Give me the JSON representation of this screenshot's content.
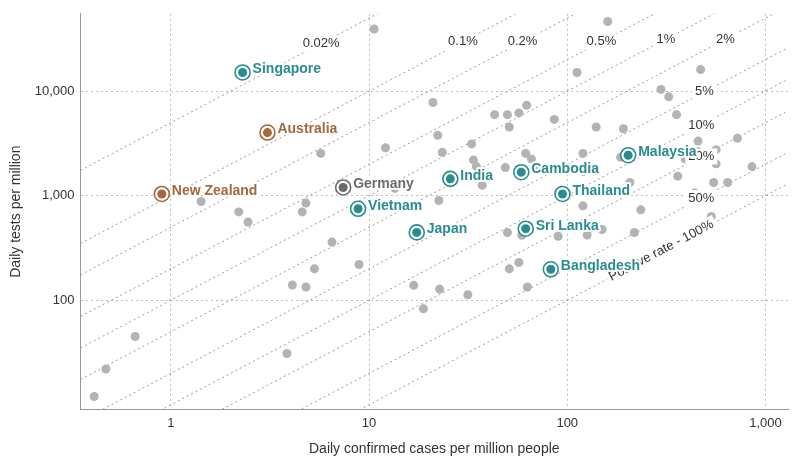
{
  "chart_data": {
    "type": "scatter",
    "x_label": "Daily confirmed cases per million people",
    "y_label": "Daily tests per million",
    "log": true,
    "grid": true,
    "xlim": [
      0.35,
      1300
    ],
    "ylim": [
      9,
      55000
    ],
    "xticks": [
      1,
      10,
      100,
      {
        "value": 1000,
        "label": "1,000"
      }
    ],
    "yticks": [
      100,
      {
        "value": 1000,
        "label": "1,000"
      },
      {
        "value": 10000,
        "label": "10,000"
      }
    ],
    "series": [
      {
        "color": "#b3b3b3",
        "marker": "circle",
        "x": [
          0.41,
          0.47,
          0.66,
          1.42,
          2.2,
          2.45,
          2.5,
          3.85,
          4.1,
          4.8,
          4.6,
          4.8,
          5.3,
          5.7,
          6.5,
          8.9,
          10.6,
          12.1,
          16.8,
          13.5,
          18.8,
          21,
          22.2,
          22.5,
          22.7,
          23.4,
          31.5,
          32.9,
          33.6,
          34.8,
          34,
          37.2,
          43,
          49.9,
          51,
          48.7,
          49.9,
          51,
          57,
          57,
          59,
          62.4,
          61.7,
          62.9,
          66,
          69,
          86,
          90,
          112,
          120,
          121,
          120,
          129,
          126,
          150,
          140,
          153,
          160,
          192,
          186,
          207,
          235,
          218,
          297,
          325,
          356,
          361,
          394,
          440,
          471,
          457,
          457,
          564,
          548,
          533,
          722,
          855,
          645,
          564
        ],
        "y": [
          12,
          22,
          45,
          880,
          700,
          560,
          1110,
          31,
          140,
          134,
          700,
          850,
          200,
          2540,
          360,
          220,
          39400,
          2880,
          139,
          1180,
          83,
          7800,
          3780,
          900,
          128,
          2600,
          113,
          3130,
          2200,
          1900,
          1540,
          1260,
          5960,
          5960,
          4550,
          1860,
          445,
          200,
          6200,
          230,
          419,
          7330,
          2540,
          134,
          2240,
          1900,
          5370,
          410,
          15100,
          2540,
          1710,
          800,
          484,
          420,
          475,
          4550,
          1130,
          46400,
          4370,
          2340,
          1340,
          733,
          445,
          10400,
          8830,
          5960,
          1540,
          2240,
          1060,
          16100,
          3330,
          2650,
          2020,
          1340,
          634,
          3550,
          1900,
          1340,
          2760
        ]
      }
    ],
    "highlighted": {
      "marker": "ring",
      "points": [
        {
          "name": "Singapore",
          "x": 2.3,
          "y": 15100,
          "color": "#2a8c8e"
        },
        {
          "name": "Australia",
          "x": 3.07,
          "y": 4020,
          "color": "#a5673f"
        },
        {
          "name": "New Zealand",
          "x": 0.9,
          "y": 1040,
          "color": "#a5673f"
        },
        {
          "name": "Germany",
          "x": 7.4,
          "y": 1200,
          "color": "#6b6b6b"
        },
        {
          "name": "India",
          "x": 25.7,
          "y": 1450,
          "color": "#2a8c8e"
        },
        {
          "name": "Vietnam",
          "x": 8.8,
          "y": 750,
          "color": "#2a8c8e"
        },
        {
          "name": "Japan",
          "x": 17.4,
          "y": 446,
          "color": "#2a8c8e"
        },
        {
          "name": "Cambodia",
          "x": 58.6,
          "y": 1680,
          "color": "#2a8c8e"
        },
        {
          "name": "Malaysia",
          "x": 203,
          "y": 2440,
          "color": "#2a8c8e"
        },
        {
          "name": "Thailand",
          "x": 94.6,
          "y": 1040,
          "color": "#2a8c8e"
        },
        {
          "name": "Sri Lanka",
          "x": 61.7,
          "y": 484,
          "color": "#2a8c8e"
        },
        {
          "name": "Bangladesh",
          "x": 82.6,
          "y": 198,
          "color": "#2a8c8e"
        }
      ]
    },
    "reference_lines": [
      {
        "value": 0.02,
        "label": "0.02%"
      },
      {
        "value": 0.1,
        "label": "0.1%"
      },
      {
        "value": 0.2,
        "label": "0.2%"
      },
      {
        "value": 0.5,
        "label": "0.5%"
      },
      {
        "value": 1,
        "label": "1%"
      },
      {
        "value": 2,
        "label": "2%"
      },
      {
        "value": 5,
        "label": "5%"
      },
      {
        "value": 10,
        "label": "10%"
      },
      {
        "value": 20,
        "label": "20%"
      },
      {
        "value": 50,
        "label": "50%"
      },
      {
        "value": 100,
        "label": "Positive rate - 100%"
      }
    ]
  }
}
